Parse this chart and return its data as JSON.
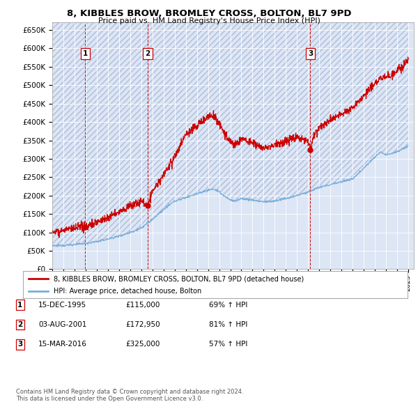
{
  "title": "8, KIBBLES BROW, BROMLEY CROSS, BOLTON, BL7 9PD",
  "subtitle": "Price paid vs. HM Land Registry's House Price Index (HPI)",
  "ylim": [
    0,
    670000
  ],
  "yticks": [
    0,
    50000,
    100000,
    150000,
    200000,
    250000,
    300000,
    350000,
    400000,
    450000,
    500000,
    550000,
    600000,
    650000
  ],
  "ytick_labels": [
    "£0",
    "£50K",
    "£100K",
    "£150K",
    "£200K",
    "£250K",
    "£300K",
    "£350K",
    "£400K",
    "£450K",
    "£500K",
    "£550K",
    "£600K",
    "£650K"
  ],
  "xlim_start": 1993.0,
  "xlim_end": 2025.5,
  "sale_color": "#cc0000",
  "hpi_color": "#7aaddb",
  "legend_label_sale": "8, KIBBLES BROW, BROMLEY CROSS, BOLTON, BL7 9PD (detached house)",
  "legend_label_hpi": "HPI: Average price, detached house, Bolton",
  "sales": [
    {
      "date": 1995.96,
      "price": 115000,
      "label": "1"
    },
    {
      "date": 2001.58,
      "price": 172950,
      "label": "2"
    },
    {
      "date": 2016.2,
      "price": 325000,
      "label": "3"
    }
  ],
  "table_rows": [
    {
      "num": "1",
      "date": "15-DEC-1995",
      "price": "£115,000",
      "hpi": "69% ↑ HPI"
    },
    {
      "num": "2",
      "date": "03-AUG-2001",
      "price": "£172,950",
      "hpi": "81% ↑ HPI"
    },
    {
      "num": "3",
      "date": "15-MAR-2016",
      "price": "£325,000",
      "hpi": "57% ↑ HPI"
    }
  ],
  "footnote": "Contains HM Land Registry data © Crown copyright and database right 2024.\nThis data is licensed under the Open Government Licence v3.0."
}
